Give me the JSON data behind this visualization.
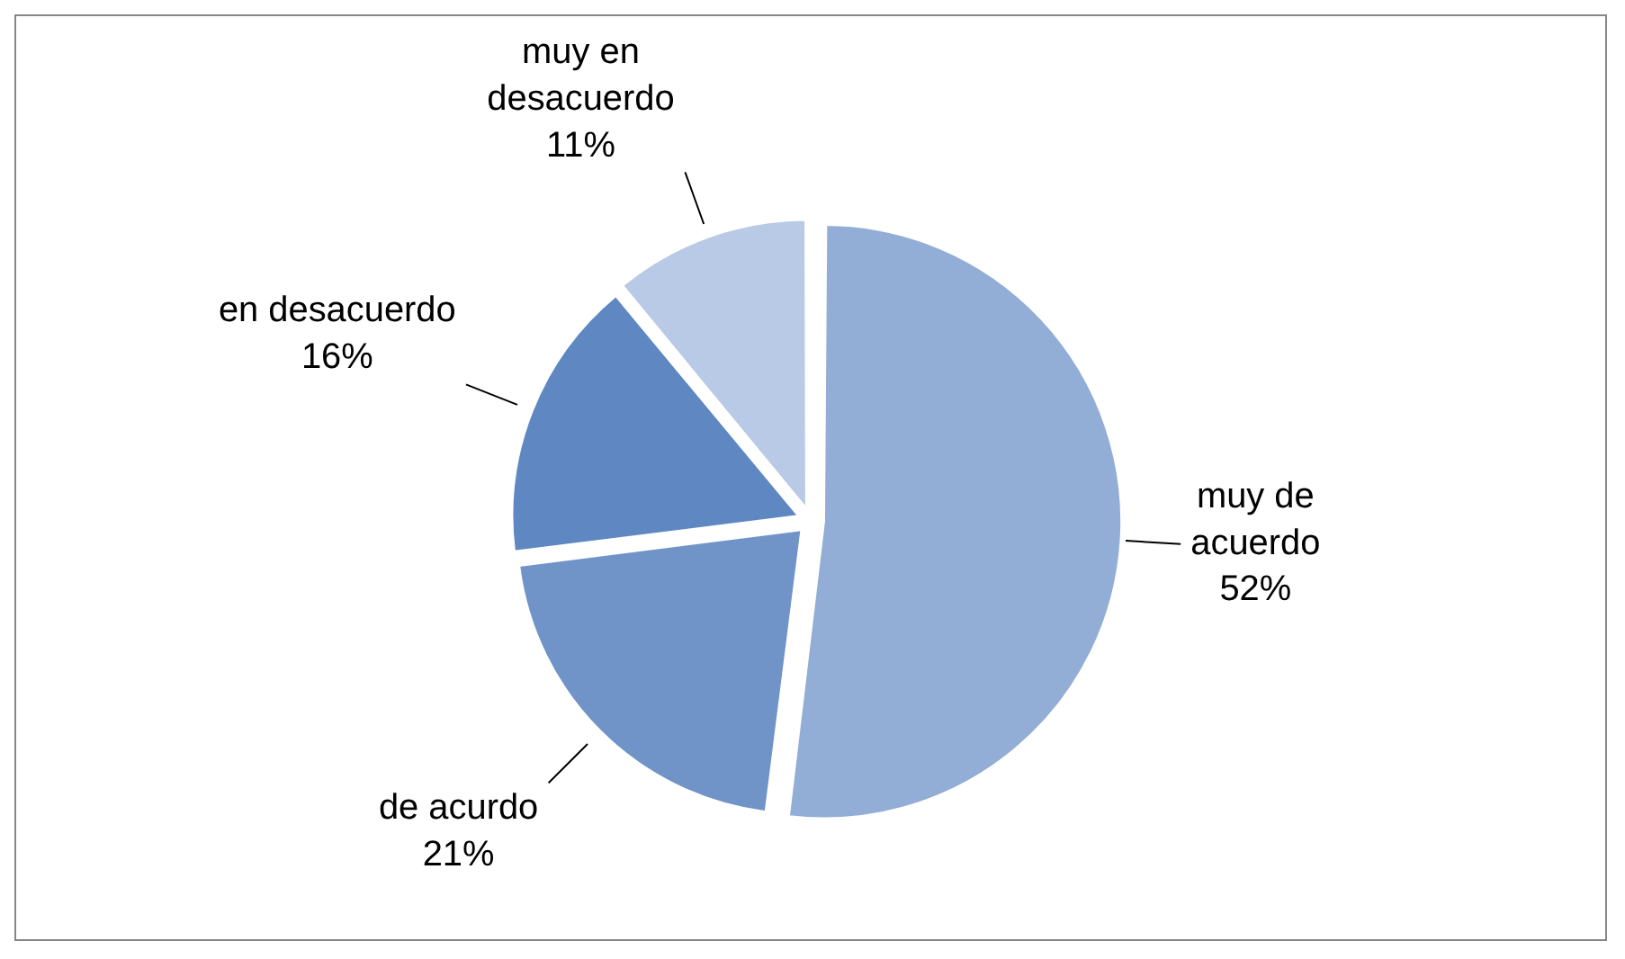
{
  "chart_data": {
    "type": "pie",
    "categories": [
      "muy de acuerdo",
      "de acurdo",
      "en desacuerdo",
      "muy en desacuerdo"
    ],
    "values": [
      52,
      21,
      16,
      11
    ],
    "value_labels": [
      "52%",
      "21%",
      "16%",
      "11%"
    ],
    "colors": [
      "#93aed6",
      "#7094c8",
      "#5f88c2",
      "#b8cae6"
    ],
    "legend": false
  }
}
